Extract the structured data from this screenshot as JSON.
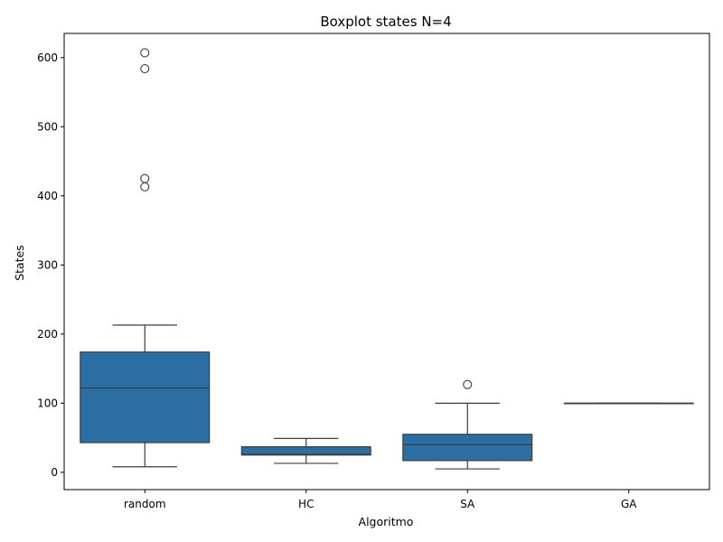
{
  "chart_data": {
    "type": "boxplot",
    "title": "Boxplot states N=4",
    "xlabel": "Algoritmo",
    "ylabel": "States",
    "ylim": [
      -25,
      635
    ],
    "yticks": [
      0,
      100,
      200,
      300,
      400,
      500,
      600
    ],
    "categories": [
      "random",
      "HC",
      "SA",
      "GA"
    ],
    "box_color": "#2b6ea4",
    "line_color": "#3d3d3d",
    "boxes": [
      {
        "category": "random",
        "whisker_low": 8,
        "q1": 43,
        "median": 122,
        "q3": 174,
        "whisker_high": 213,
        "outliers": [
          413,
          425,
          584,
          607
        ]
      },
      {
        "category": "HC",
        "whisker_low": 13,
        "q1": 25,
        "median": 26,
        "q3": 37,
        "whisker_high": 49,
        "outliers": []
      },
      {
        "category": "SA",
        "whisker_low": 5,
        "q1": 17,
        "median": 40,
        "q3": 55,
        "whisker_high": 100,
        "outliers": [
          127
        ]
      },
      {
        "category": "GA",
        "whisker_low": 100,
        "q1": 100,
        "median": 100,
        "q3": 100,
        "whisker_high": 100,
        "outliers": []
      }
    ]
  }
}
